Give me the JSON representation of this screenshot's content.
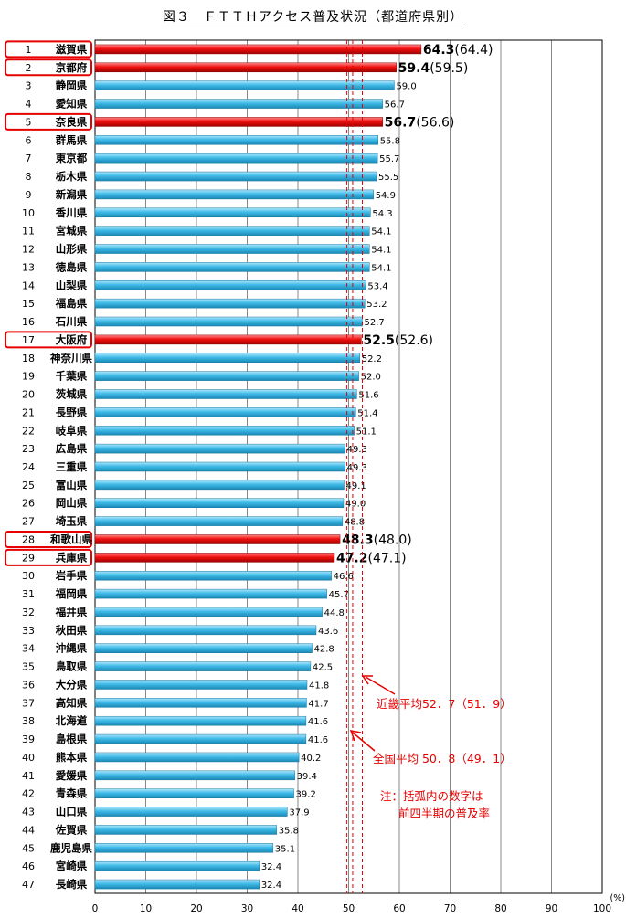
{
  "title": "図３　ＦＴＴＨアクセス普及状況（都道府県別）",
  "chart_data": {
    "type": "bar",
    "orientation": "horizontal",
    "ranks": [
      "1",
      "2",
      "3",
      "4",
      "5",
      "6",
      "7",
      "8",
      "9",
      "10",
      "11",
      "12",
      "13",
      "14",
      "15",
      "16",
      "17",
      "18",
      "19",
      "20",
      "21",
      "22",
      "23",
      "24",
      "25",
      "26",
      "27",
      "28",
      "29",
      "30",
      "31",
      "32",
      "33",
      "34",
      "35",
      "36",
      "37",
      "38",
      "39",
      "40",
      "41",
      "42",
      "43",
      "44",
      "45",
      "46",
      "47"
    ],
    "categories": [
      "滋賀県",
      "京都府",
      "静岡県",
      "愛知県",
      "奈良県",
      "群馬県",
      "東京都",
      "栃木県",
      "新潟県",
      "香川県",
      "宮城県",
      "山形県",
      "徳島県",
      "山梨県",
      "福島県",
      "石川県",
      "大阪府",
      "神奈川県",
      "千葉県",
      "茨城県",
      "長野県",
      "岐阜県",
      "広島県",
      "三重県",
      "富山県",
      "岡山県",
      "埼玉県",
      "和歌山県",
      "兵庫県",
      "岩手県",
      "福岡県",
      "福井県",
      "秋田県",
      "沖縄県",
      "鳥取県",
      "大分県",
      "高知県",
      "北海道",
      "島根県",
      "熊本県",
      "愛媛県",
      "青森県",
      "山口県",
      "佐賀県",
      "鹿児島県",
      "宮崎県",
      "長崎県"
    ],
    "values": [
      64.3,
      59.4,
      59.0,
      56.7,
      56.7,
      55.8,
      55.7,
      55.5,
      54.9,
      54.3,
      54.1,
      54.1,
      54.1,
      53.4,
      53.2,
      52.7,
      52.5,
      52.2,
      52.0,
      51.6,
      51.4,
      51.1,
      49.3,
      49.3,
      49.1,
      49.0,
      48.8,
      48.3,
      47.2,
      46.6,
      45.7,
      44.8,
      43.6,
      42.8,
      42.5,
      41.8,
      41.7,
      41.6,
      41.6,
      40.2,
      39.4,
      39.2,
      37.9,
      35.8,
      35.1,
      32.4,
      32.4
    ],
    "value_labels": [
      "64.3",
      "59.4",
      "59.0",
      "56.7",
      "56.7",
      "55.8",
      "55.7",
      "55.5",
      "54.9",
      "54.3",
      "54.1",
      "54.1",
      "54.1",
      "53.4",
      "53.2",
      "52.7",
      "52.5",
      "52.2",
      "52.0",
      "51.6",
      "51.4",
      "51.1",
      "49.3",
      "49.3",
      "49.1",
      "49.0",
      "48.8",
      "48.3",
      "47.2",
      "46.6",
      "45.7",
      "44.8",
      "43.6",
      "42.8",
      "42.5",
      "41.8",
      "41.7",
      "41.6",
      "41.6",
      "40.2",
      "39.4",
      "39.2",
      "37.9",
      "35.8",
      "35.1",
      "32.4",
      "32.4"
    ],
    "highlighted": [
      {
        "name": "滋賀県",
        "previous": "(64.4)"
      },
      {
        "name": "京都府",
        "previous": "(59.5)"
      },
      {
        "name": "奈良県",
        "previous": "(56.6)"
      },
      {
        "name": "大阪府",
        "previous": "(52.6)"
      },
      {
        "name": "和歌山県",
        "previous": "(48.0)"
      },
      {
        "name": "兵庫県",
        "previous": "(47.1)"
      }
    ],
    "reference_lines": [
      {
        "label": "近畿平均52．7（51．9）",
        "value": 52.7
      },
      {
        "label": "全国平均 50．8（49．1）",
        "value": 50.8
      }
    ],
    "xlim": [
      0,
      100
    ],
    "xticks": [
      "0",
      "10",
      "20",
      "30",
      "40",
      "50",
      "60",
      "70",
      "80",
      "90",
      "100"
    ],
    "xunit": "(%)",
    "note_lines": [
      "注：括弧内の数字は",
      "前四半期の普及率"
    ],
    "colors": {
      "bar": "#33b5e5",
      "highlight_bar": "#e60000",
      "highlight_box": "#e60000",
      "reference_line": "#e60000",
      "grid": "#000000"
    }
  }
}
